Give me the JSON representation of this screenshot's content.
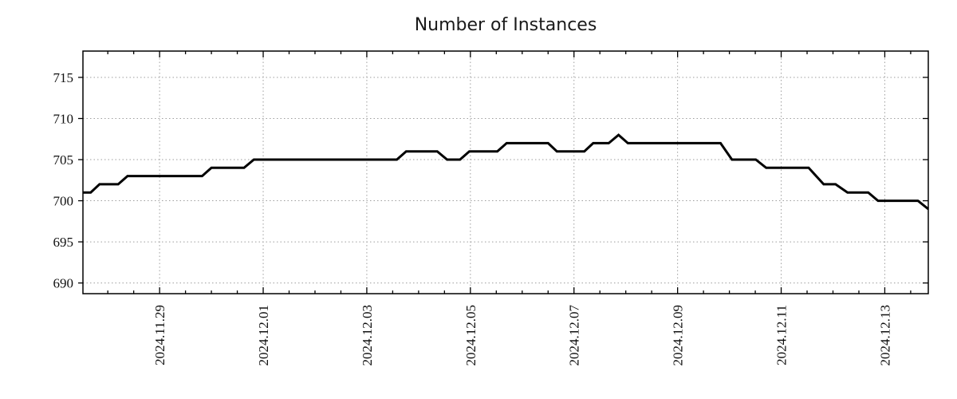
{
  "title": "Number of Instances",
  "colors": {
    "series": "#000000",
    "grid": "#9e9e9e",
    "border": "#000000",
    "text": "#111111",
    "background": "#ffffff"
  },
  "chart_data": {
    "type": "line",
    "style": "step-like time series, black line on white, dotted gray grid",
    "title": "Number of Instances",
    "xlabel": "",
    "ylabel": "",
    "legend": "none",
    "grid": "dotted, at major ticks only",
    "x_unit": "days relative to 2024.11.29 00:00",
    "x_range": [
      -1.48,
      14.84
    ],
    "y_range": [
      688.7,
      718.2
    ],
    "y_ticks": [
      690,
      695,
      700,
      705,
      710,
      715
    ],
    "x_minor_step": 0.5,
    "x_major_ticks": [
      {
        "t": 0,
        "label": "2024.11.29"
      },
      {
        "t": 2,
        "label": "2024.12.01"
      },
      {
        "t": 4,
        "label": "2024.12.03"
      },
      {
        "t": 6,
        "label": "2024.12.05"
      },
      {
        "t": 8,
        "label": "2024.12.07"
      },
      {
        "t": 10,
        "label": "2024.12.09"
      },
      {
        "t": 12,
        "label": "2024.12.11"
      },
      {
        "t": 14,
        "label": "2024.12.13"
      }
    ],
    "points": [
      [
        -1.48,
        701
      ],
      [
        -1.33,
        701
      ],
      [
        -1.16,
        702
      ],
      [
        -0.8,
        702
      ],
      [
        -0.62,
        703
      ],
      [
        0.82,
        703
      ],
      [
        1.0,
        704
      ],
      [
        1.63,
        704
      ],
      [
        1.82,
        705
      ],
      [
        4.58,
        705
      ],
      [
        4.76,
        706
      ],
      [
        5.36,
        706
      ],
      [
        5.55,
        705
      ],
      [
        5.8,
        705
      ],
      [
        5.98,
        706
      ],
      [
        6.52,
        706
      ],
      [
        6.7,
        707
      ],
      [
        7.5,
        707
      ],
      [
        7.67,
        706
      ],
      [
        8.2,
        706
      ],
      [
        8.37,
        707
      ],
      [
        8.67,
        707
      ],
      [
        8.86,
        708
      ],
      [
        9.04,
        707
      ],
      [
        10.83,
        707
      ],
      [
        11.05,
        705
      ],
      [
        11.51,
        705
      ],
      [
        11.71,
        704
      ],
      [
        12.53,
        704
      ],
      [
        12.82,
        702
      ],
      [
        13.05,
        702
      ],
      [
        13.28,
        701
      ],
      [
        13.68,
        701
      ],
      [
        13.87,
        700
      ],
      [
        14.64,
        700
      ],
      [
        14.84,
        699
      ]
    ]
  }
}
